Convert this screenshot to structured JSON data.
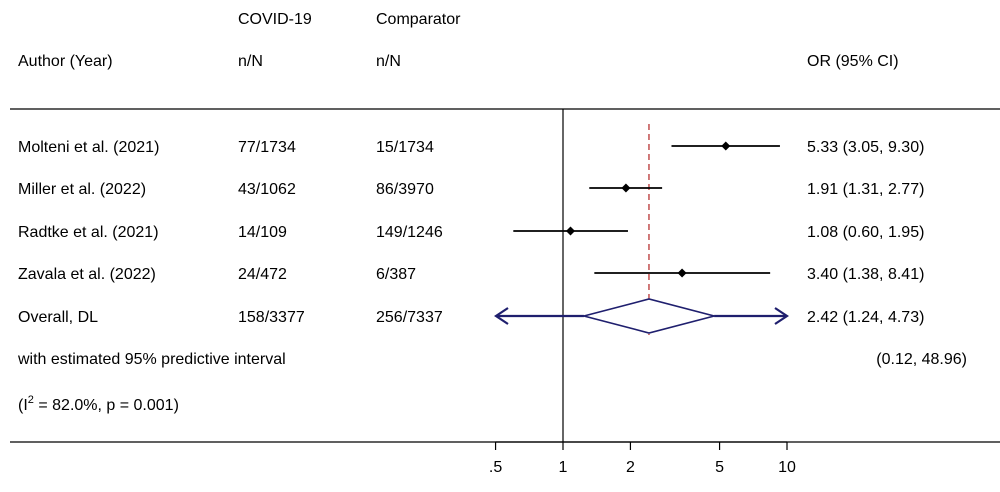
{
  "chart_data": {
    "type": "forest",
    "scale": "log",
    "x_ticks": [
      0.5,
      1,
      2,
      5,
      10
    ],
    "x_tick_labels": [
      ".5",
      "1",
      "2",
      "5",
      "10"
    ],
    "null_line": 1,
    "overall_reference": 2.42,
    "header": {
      "group1_title": "COVID-19",
      "group2_title": "Comparator",
      "author_label": "Author (Year)",
      "group1_sub": "n/N",
      "group2_sub": "n/N",
      "effect_label": "OR (95% CI)"
    },
    "studies": [
      {
        "author": "Molteni et al. (2021)",
        "g1": "77/1734",
        "g2": "15/1734",
        "or": 5.33,
        "lo": 3.05,
        "hi": 9.3,
        "label": "5.33 (3.05, 9.30)"
      },
      {
        "author": "Miller et al. (2022)",
        "g1": "43/1062",
        "g2": "86/3970",
        "or": 1.91,
        "lo": 1.31,
        "hi": 2.77,
        "label": "1.91 (1.31, 2.77)"
      },
      {
        "author": "Radtke et al. (2021)",
        "g1": "14/109",
        "g2": "149/1246",
        "or": 1.08,
        "lo": 0.6,
        "hi": 1.95,
        "label": "1.08 (0.60, 1.95)"
      },
      {
        "author": "Zavala et al. (2022)",
        "g1": "24/472",
        "g2": "6/387",
        "or": 3.4,
        "lo": 1.38,
        "hi": 8.41,
        "label": "3.40 (1.38, 8.41)"
      }
    ],
    "overall": {
      "author": "Overall, DL",
      "g1": "158/3377",
      "g2": "256/7337",
      "or": 2.42,
      "lo": 1.24,
      "hi": 4.73,
      "pi_lo": 0.12,
      "pi_hi": 48.96,
      "label": "2.42 (1.24, 4.73)"
    },
    "predictive_label": "with estimated 95% predictive interval",
    "predictive_value": "(0.12, 48.96)",
    "heterogeneity": "(I",
    "heterogeneity_sup": "2",
    "heterogeneity_rest": " = 82.0%, p = 0.001)",
    "colors": {
      "diamond": "#1f1f6e",
      "reference_line": "#b22222",
      "text": "#000000"
    }
  }
}
